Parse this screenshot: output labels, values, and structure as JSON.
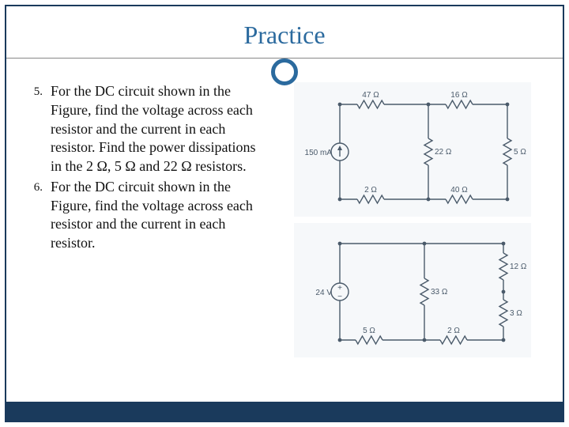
{
  "title": "Practice",
  "accent_color": "#2b6a9e",
  "frame_color": "#1a3a5c",
  "problems": [
    {
      "number": "5.",
      "text": "For the DC circuit shown in the Figure, find the voltage across each resistor and the current in each resistor. Find the power dissipations in the 2 Ω, 5 Ω and 22 Ω resistors."
    },
    {
      "number": "6.",
      "text": "For the DC circuit shown in the Figure, find the voltage across each resistor and the current in each resistor."
    }
  ],
  "circuit1": {
    "type": "circuit-diagram",
    "source": {
      "label": "150 mA",
      "kind": "current",
      "position": "left"
    },
    "top_resistors": [
      {
        "label": "47 Ω",
        "col": 1
      },
      {
        "label": "16 Ω",
        "col": 2
      }
    ],
    "mid_resistors": [
      {
        "label": "22 Ω",
        "col": "center"
      },
      {
        "label": "5 Ω",
        "col": "right"
      }
    ],
    "bottom_resistors": [
      {
        "label": "2 Ω",
        "col": 1
      },
      {
        "label": "40 Ω",
        "col": 2
      }
    ],
    "stroke": "#4a5a6a",
    "text_color": "#4a5a6a",
    "bg": "#f6f8fa",
    "label_fontsize": 10
  },
  "circuit2": {
    "type": "circuit-diagram",
    "source": {
      "label": "24 V",
      "kind": "voltage",
      "position": "left"
    },
    "mid_resistors": [
      {
        "label": "33 Ω",
        "col": "center"
      },
      {
        "label": "12 Ω",
        "col": "right-top"
      },
      {
        "label": "3 Ω",
        "col": "right-bottom"
      }
    ],
    "bottom_resistors": [
      {
        "label": "5 Ω",
        "col": 1
      },
      {
        "label": "2 Ω",
        "col": 2
      }
    ],
    "stroke": "#4a5a6a",
    "text_color": "#4a5a6a",
    "bg": "#f6f8fa",
    "label_fontsize": 10
  }
}
